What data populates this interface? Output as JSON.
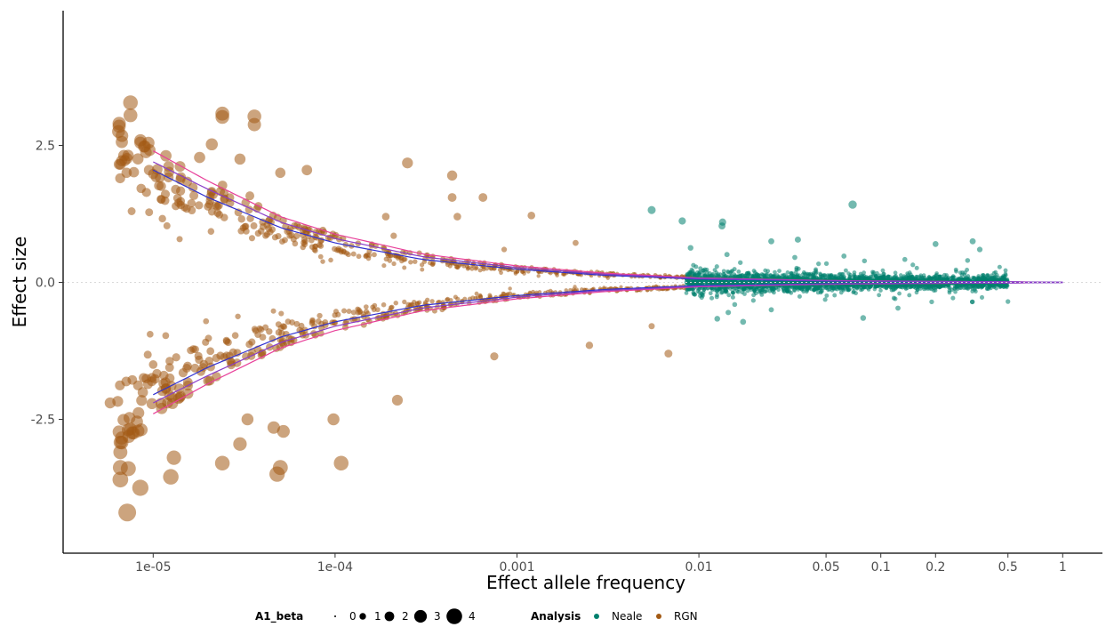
{
  "chart_data": {
    "type": "scatter",
    "title": "",
    "xlabel": "Effect allele frequency",
    "ylabel": "Effect size",
    "x_scale": "log10",
    "xlim": [
      4.5e-06,
      1.5
    ],
    "ylim": [
      -4.6,
      4.6
    ],
    "x_ticks": [
      {
        "value": 1e-05,
        "label": "1e-05"
      },
      {
        "value": 0.0001,
        "label": "1e-04"
      },
      {
        "value": 0.001,
        "label": "0.001"
      },
      {
        "value": 0.01,
        "label": "0.01"
      },
      {
        "value": 0.05,
        "label": "0.05"
      },
      {
        "value": 0.1,
        "label": "0.1"
      },
      {
        "value": 0.2,
        "label": "0.2"
      },
      {
        "value": 0.5,
        "label": "0.5"
      },
      {
        "value": 1,
        "label": "1"
      }
    ],
    "y_ticks": [
      {
        "value": 2.5,
        "label": "2.5"
      },
      {
        "value": 0,
        "label": "0.0"
      },
      {
        "value": -2.5,
        "label": "-2.5"
      }
    ],
    "grid": false,
    "reference_line_y": 0,
    "size_legend": {
      "title": "A1_beta",
      "values": [
        0,
        1,
        2,
        3,
        4
      ]
    },
    "color_legend": {
      "title": "Analysis",
      "entries": [
        {
          "label": "Neale",
          "color": "#00806e"
        },
        {
          "label": "RGN",
          "color": "#a35a14"
        }
      ]
    },
    "legend_position": "bottom",
    "curves": [
      {
        "color": "#e8409a",
        "description": "power curve",
        "points": [
          [
            1e-05,
            2.4
          ],
          [
            2e-05,
            1.85
          ],
          [
            5e-05,
            1.2
          ],
          [
            0.0001,
            0.88
          ],
          [
            0.0003,
            0.52
          ],
          [
            0.001,
            0.3
          ],
          [
            0.003,
            0.17
          ],
          [
            0.01,
            0.08
          ],
          [
            0.05,
            0.035
          ],
          [
            0.2,
            0.018
          ],
          [
            0.5,
            0.012
          ],
          [
            1,
            0
          ]
        ]
      },
      {
        "color": "#3030d0",
        "description": "power curve",
        "points": [
          [
            1e-05,
            2.05
          ],
          [
            2e-05,
            1.55
          ],
          [
            5e-05,
            1.0
          ],
          [
            0.0001,
            0.72
          ],
          [
            0.0003,
            0.42
          ],
          [
            0.001,
            0.24
          ],
          [
            0.003,
            0.13
          ],
          [
            0.01,
            0.06
          ],
          [
            0.05,
            0.025
          ],
          [
            0.2,
            0.013
          ],
          [
            0.5,
            0.009
          ],
          [
            1,
            0
          ]
        ]
      },
      {
        "color": "#8a3cc8",
        "description": "power curve",
        "points": [
          [
            1e-05,
            2.2
          ],
          [
            2e-05,
            1.7
          ],
          [
            5e-05,
            1.1
          ],
          [
            0.0001,
            0.8
          ],
          [
            0.0003,
            0.47
          ],
          [
            0.001,
            0.27
          ],
          [
            0.003,
            0.15
          ],
          [
            0.01,
            0.07
          ],
          [
            0.05,
            0.03
          ],
          [
            0.2,
            0.015
          ],
          [
            0.5,
            0.01
          ],
          [
            1,
            0
          ]
        ]
      }
    ],
    "series": [
      {
        "name": "RGN",
        "color": "#a35a14",
        "highlight_points": [
          [
            7.5e-06,
            3.28
          ],
          [
            7.5e-06,
            3.05
          ],
          [
            6.5e-06,
            2.9
          ],
          [
            6.5e-06,
            2.85
          ],
          [
            8.5e-06,
            2.55
          ],
          [
            2.4e-05,
            3.08
          ],
          [
            2.4e-05,
            3.02
          ],
          [
            3.6e-05,
            3.03
          ],
          [
            3.6e-05,
            2.88
          ],
          [
            3e-05,
            2.25
          ],
          [
            1.8e-05,
            2.28
          ],
          [
            2.1e-05,
            2.52
          ],
          [
            0.00025,
            2.18
          ],
          [
            0.00044,
            1.95
          ],
          [
            0.00044,
            1.55
          ],
          [
            7e-05,
            2.05
          ],
          [
            5e-05,
            2.0
          ],
          [
            3.4e-05,
            1.58
          ],
          [
            9.5e-06,
            2.05
          ],
          [
            9.5e-06,
            1.28
          ],
          [
            6.6e-06,
            -2.92
          ],
          [
            6.6e-06,
            -3.1
          ],
          [
            6.6e-06,
            -3.38
          ],
          [
            6.6e-06,
            -3.6
          ],
          [
            7.3e-06,
            -3.4
          ],
          [
            7.2e-06,
            -4.2
          ],
          [
            8.5e-06,
            -3.75
          ],
          [
            1.25e-05,
            -3.55
          ],
          [
            1.3e-05,
            -3.2
          ],
          [
            2.4e-05,
            -3.3
          ],
          [
            4.8e-05,
            -3.5
          ],
          [
            5e-05,
            -3.38
          ],
          [
            0.000108,
            -3.3
          ],
          [
            0.00022,
            -2.15
          ],
          [
            4.6e-05,
            -2.65
          ],
          [
            5.2e-05,
            -2.72
          ],
          [
            3e-05,
            -2.95
          ],
          [
            3.3e-05,
            -2.5
          ],
          [
            9.8e-05,
            -2.5
          ],
          [
            0.00075,
            -1.35
          ],
          [
            0.0025,
            -1.15
          ],
          [
            0.0068,
            -1.3
          ],
          [
            0.0055,
            -0.8
          ],
          [
            0.00065,
            1.55
          ],
          [
            0.0012,
            1.22
          ],
          [
            0.00019,
            1.2
          ],
          [
            0.00021,
            0.85
          ],
          [
            0.00047,
            1.2
          ],
          [
            0.00085,
            0.6
          ],
          [
            0.0021,
            0.72
          ],
          [
            5.8e-06,
            -2.2
          ],
          [
            1e-05,
            -1.5
          ],
          [
            1.2e-05,
            -2.2
          ],
          [
            2e-05,
            -1.8
          ],
          [
            4e-05,
            -1.0
          ]
        ]
      },
      {
        "name": "Neale",
        "color": "#00806e",
        "highlight_points": [
          [
            0.0055,
            1.32
          ],
          [
            0.0081,
            1.12
          ],
          [
            0.0135,
            1.1
          ],
          [
            0.0134,
            1.03
          ],
          [
            0.07,
            1.42
          ],
          [
            0.025,
            0.75
          ],
          [
            0.035,
            0.78
          ],
          [
            0.2,
            0.7
          ],
          [
            0.32,
            0.75
          ],
          [
            0.35,
            0.6
          ],
          [
            0.0175,
            -0.72
          ],
          [
            0.0145,
            -0.55
          ],
          [
            0.08,
            -0.65
          ],
          [
            0.025,
            -0.5
          ],
          [
            0.009,
            0.63
          ],
          [
            0.15,
            0.32
          ],
          [
            0.3,
            0.4
          ],
          [
            0.45,
            0.28
          ],
          [
            0.5,
            -0.35
          ],
          [
            0.12,
            -0.3
          ]
        ]
      }
    ]
  }
}
